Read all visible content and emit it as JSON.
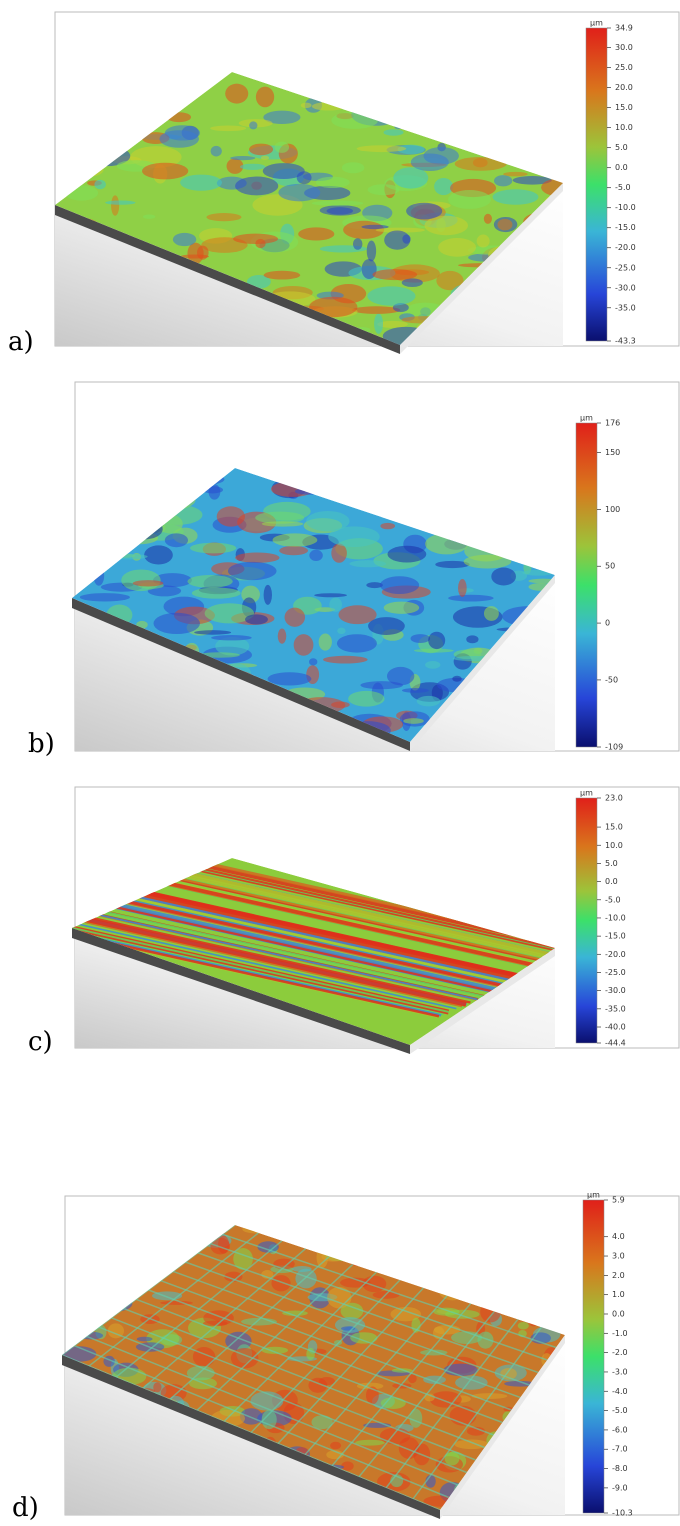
{
  "panels": [
    {
      "label": "a)",
      "colorbar": {
        "unit": "µm",
        "ticks": [
          34.9,
          {
            "value": 30,
            "label": "30.0"
          },
          {
            "value": 25,
            "label": "25.0"
          },
          {
            "value": 20,
            "label": "20.0"
          },
          {
            "value": 15,
            "label": "15.0"
          },
          {
            "value": 10,
            "label": "10.0"
          },
          {
            "value": 5,
            "label": "5.0"
          },
          {
            "value": 0,
            "label": "0.0"
          },
          {
            "value": -5,
            "label": "-5.0"
          },
          {
            "value": -10,
            "label": "-10.0"
          },
          {
            "value": -15,
            "label": "-15.0"
          },
          {
            "value": -20,
            "label": "-20.0"
          },
          {
            "value": -25,
            "label": "-25.0"
          },
          {
            "value": -30,
            "label": "-30.0"
          },
          {
            "value": -35,
            "label": "-35.0"
          },
          -43.3
        ]
      }
    },
    {
      "label": "b)",
      "colorbar": {
        "unit": "µm",
        "ticks": [
          176,
          150,
          100,
          50,
          0,
          -50,
          -109
        ]
      }
    },
    {
      "label": "c)",
      "colorbar": {
        "unit": "µm",
        "ticks": [
          {
            "value": 23,
            "label": "23.0"
          },
          {
            "value": 15,
            "label": "15.0"
          },
          {
            "value": 10,
            "label": "10.0"
          },
          {
            "value": 5,
            "label": "5.0"
          },
          {
            "value": 0,
            "label": "0.0"
          },
          {
            "value": -5,
            "label": "-5.0"
          },
          {
            "value": -10,
            "label": "-10.0"
          },
          {
            "value": -15,
            "label": "-15.0"
          },
          {
            "value": -20,
            "label": "-20.0"
          },
          {
            "value": -25,
            "label": "-25.0"
          },
          {
            "value": -30,
            "label": "-30.0"
          },
          {
            "value": -35,
            "label": "-35.0"
          },
          {
            "value": -40,
            "label": "-40.0"
          },
          -44.4
        ]
      }
    },
    {
      "label": "d)",
      "colorbar": {
        "unit": "µm",
        "ticks": [
          5.9,
          {
            "value": 4,
            "label": "4.0"
          },
          {
            "value": 3,
            "label": "3.0"
          },
          {
            "value": 2,
            "label": "2.0"
          },
          {
            "value": 1,
            "label": "1.0"
          },
          {
            "value": 0,
            "label": "0.0"
          },
          {
            "value": -1,
            "label": "-1.0"
          },
          {
            "value": -2,
            "label": "-2.0"
          },
          {
            "value": -3,
            "label": "-3.0"
          },
          {
            "value": -4,
            "label": "-4.0"
          },
          {
            "value": -5,
            "label": "-5.0"
          },
          {
            "value": -6,
            "label": "-6.0"
          },
          {
            "value": -7,
            "label": "-7.0"
          },
          {
            "value": -8,
            "label": "-8.0"
          },
          {
            "value": -9,
            "label": "-9.0"
          },
          -10.3
        ]
      }
    }
  ]
}
